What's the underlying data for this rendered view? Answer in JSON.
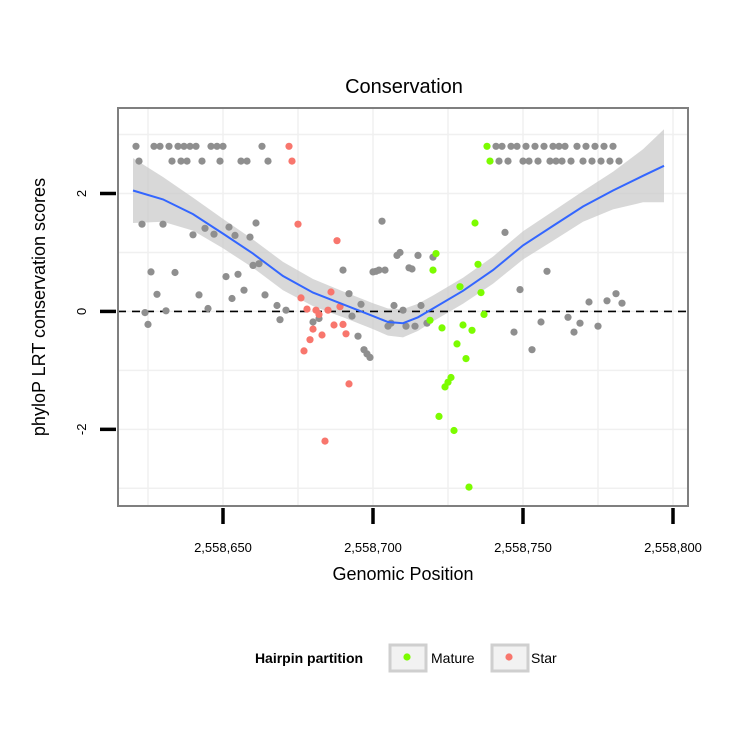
{
  "chart_data": {
    "type": "scatter",
    "title": "Conservation",
    "xlabel": "Genomic Position",
    "ylabel": "phyloP LRT conservation scores",
    "xlim": [
      2558615,
      2558805
    ],
    "ylim": [
      -3.3,
      3.45
    ],
    "x_ticks": [
      2558650,
      2558700,
      2558750,
      2558800
    ],
    "x_tick_labels": [
      "2,558,650",
      "2,558,700",
      "2,558,750",
      "2,558,800"
    ],
    "y_ticks": [
      -2,
      0,
      2
    ],
    "y_tick_labels": [
      "-2",
      "0",
      "2"
    ],
    "reference_line": {
      "y": 0,
      "style": "dashed"
    },
    "legend": {
      "title": "Hairpin partition",
      "position": "bottom",
      "entries": [
        {
          "label": "Mature",
          "color": "#7cfc00"
        },
        {
          "label": "Star",
          "color": "#f8766d"
        }
      ]
    },
    "colors": {
      "other": "#8f8f8f",
      "mature": "#7cfc00",
      "star": "#f8766d",
      "smooth": "#3366ff",
      "ribbon": "#c8c8c8"
    },
    "series": [
      {
        "name": "Other",
        "points": [
          [
            2558621,
            2.8
          ],
          [
            2558622,
            2.55
          ],
          [
            2558623,
            1.48
          ],
          [
            2558624,
            -0.02
          ],
          [
            2558625,
            -0.22
          ],
          [
            2558626,
            0.67
          ],
          [
            2558627,
            2.8
          ],
          [
            2558628,
            0.29
          ],
          [
            2558629,
            2.8
          ],
          [
            2558630,
            1.48
          ],
          [
            2558631,
            0.01
          ],
          [
            2558632,
            2.8
          ],
          [
            2558633,
            2.55
          ],
          [
            2558634,
            0.66
          ],
          [
            2558635,
            2.8
          ],
          [
            2558636,
            2.55
          ],
          [
            2558637,
            2.8
          ],
          [
            2558638,
            2.55
          ],
          [
            2558639,
            2.8
          ],
          [
            2558640,
            1.3
          ],
          [
            2558641,
            2.8
          ],
          [
            2558642,
            0.28
          ],
          [
            2558643,
            2.55
          ],
          [
            2558644,
            1.41
          ],
          [
            2558645,
            0.05
          ],
          [
            2558646,
            2.8
          ],
          [
            2558647,
            1.31
          ],
          [
            2558648,
            2.8
          ],
          [
            2558649,
            2.55
          ],
          [
            2558650,
            2.8
          ],
          [
            2558651,
            0.59
          ],
          [
            2558652,
            1.43
          ],
          [
            2558653,
            0.22
          ],
          [
            2558654,
            1.29
          ],
          [
            2558655,
            0.63
          ],
          [
            2558656,
            2.55
          ],
          [
            2558657,
            0.36
          ],
          [
            2558658,
            2.55
          ],
          [
            2558659,
            1.26
          ],
          [
            2558660,
            0.78
          ],
          [
            2558661,
            1.5
          ],
          [
            2558662,
            0.81
          ],
          [
            2558663,
            2.8
          ],
          [
            2558664,
            0.28
          ],
          [
            2558665,
            2.55
          ],
          [
            2558668,
            0.1
          ],
          [
            2558669,
            -0.14
          ],
          [
            2558671,
            0.02
          ],
          [
            2558680,
            -0.18
          ],
          [
            2558682,
            -0.12
          ],
          [
            2558690,
            0.7
          ],
          [
            2558692,
            0.3
          ],
          [
            2558693,
            -0.08
          ],
          [
            2558695,
            -0.42
          ],
          [
            2558696,
            0.12
          ],
          [
            2558697,
            -0.65
          ],
          [
            2558698,
            -0.72
          ],
          [
            2558699,
            -0.78
          ],
          [
            2558700,
            0.67
          ],
          [
            2558701,
            0.68
          ],
          [
            2558702,
            0.7
          ],
          [
            2558703,
            1.53
          ],
          [
            2558704,
            0.7
          ],
          [
            2558705,
            -0.25
          ],
          [
            2558706,
            -0.2
          ],
          [
            2558707,
            0.1
          ],
          [
            2558708,
            0.95
          ],
          [
            2558709,
            1.0
          ],
          [
            2558710,
            0.02
          ],
          [
            2558711,
            -0.25
          ],
          [
            2558712,
            0.74
          ],
          [
            2558713,
            0.72
          ],
          [
            2558714,
            -0.25
          ],
          [
            2558715,
            0.95
          ],
          [
            2558716,
            0.1
          ],
          [
            2558718,
            -0.2
          ],
          [
            2558720,
            0.92
          ],
          [
            2558741,
            2.8
          ],
          [
            2558742,
            2.55
          ],
          [
            2558743,
            2.8
          ],
          [
            2558744,
            1.34
          ],
          [
            2558745,
            2.55
          ],
          [
            2558746,
            2.8
          ],
          [
            2558747,
            -0.35
          ],
          [
            2558748,
            2.8
          ],
          [
            2558749,
            0.37
          ],
          [
            2558750,
            2.55
          ],
          [
            2558751,
            2.8
          ],
          [
            2558752,
            2.55
          ],
          [
            2558753,
            -0.65
          ],
          [
            2558754,
            2.8
          ],
          [
            2558755,
            2.55
          ],
          [
            2558756,
            -0.18
          ],
          [
            2558757,
            2.8
          ],
          [
            2558758,
            0.68
          ],
          [
            2558759,
            2.55
          ],
          [
            2558760,
            2.8
          ],
          [
            2558761,
            2.55
          ],
          [
            2558762,
            2.8
          ],
          [
            2558763,
            2.55
          ],
          [
            2558764,
            2.8
          ],
          [
            2558765,
            -0.1
          ],
          [
            2558766,
            2.55
          ],
          [
            2558767,
            -0.35
          ],
          [
            2558768,
            2.8
          ],
          [
            2558769,
            -0.2
          ],
          [
            2558770,
            2.55
          ],
          [
            2558771,
            2.8
          ],
          [
            2558772,
            0.16
          ],
          [
            2558773,
            2.55
          ],
          [
            2558774,
            2.8
          ],
          [
            2558775,
            -0.25
          ],
          [
            2558776,
            2.55
          ],
          [
            2558777,
            2.8
          ],
          [
            2558778,
            0.18
          ],
          [
            2558779,
            2.55
          ],
          [
            2558780,
            2.8
          ],
          [
            2558781,
            0.3
          ],
          [
            2558782,
            2.55
          ],
          [
            2558783,
            0.14
          ]
        ]
      },
      {
        "name": "Mature",
        "points": [
          [
            2558719,
            -0.15
          ],
          [
            2558720,
            0.7
          ],
          [
            2558721,
            0.98
          ],
          [
            2558722,
            -1.78
          ],
          [
            2558723,
            -0.28
          ],
          [
            2558724,
            -1.28
          ],
          [
            2558725,
            -1.2
          ],
          [
            2558726,
            -1.12
          ],
          [
            2558727,
            -2.02
          ],
          [
            2558728,
            -0.55
          ],
          [
            2558729,
            0.42
          ],
          [
            2558730,
            -0.23
          ],
          [
            2558731,
            -0.8
          ],
          [
            2558732,
            -2.98
          ],
          [
            2558733,
            -0.32
          ],
          [
            2558734,
            1.5
          ],
          [
            2558735,
            0.8
          ],
          [
            2558736,
            0.32
          ],
          [
            2558737,
            -0.05
          ],
          [
            2558738,
            2.8
          ],
          [
            2558739,
            2.55
          ]
        ]
      },
      {
        "name": "Star",
        "points": [
          [
            2558672,
            2.8
          ],
          [
            2558673,
            2.55
          ],
          [
            2558675,
            1.48
          ],
          [
            2558676,
            0.23
          ],
          [
            2558677,
            -0.67
          ],
          [
            2558678,
            0.04
          ],
          [
            2558679,
            -0.48
          ],
          [
            2558680,
            -0.3
          ],
          [
            2558681,
            0.02
          ],
          [
            2558682,
            -0.05
          ],
          [
            2558683,
            -0.4
          ],
          [
            2558684,
            -2.2
          ],
          [
            2558685,
            0.02
          ],
          [
            2558686,
            0.33
          ],
          [
            2558687,
            -0.23
          ],
          [
            2558688,
            1.2
          ],
          [
            2558689,
            0.08
          ],
          [
            2558690,
            -0.22
          ],
          [
            2558691,
            -0.38
          ],
          [
            2558692,
            -1.23
          ]
        ]
      }
    ],
    "smooth": {
      "x": [
        2558620,
        2558630,
        2558640,
        2558650,
        2558660,
        2558670,
        2558680,
        2558690,
        2558700,
        2558705,
        2558710,
        2558715,
        2558720,
        2558730,
        2558740,
        2558750,
        2558760,
        2558770,
        2558780,
        2558790,
        2558797
      ],
      "y": [
        2.05,
        1.9,
        1.65,
        1.32,
        0.98,
        0.6,
        0.32,
        0.12,
        -0.08,
        -0.18,
        -0.2,
        -0.1,
        0.05,
        0.35,
        0.7,
        1.12,
        1.45,
        1.78,
        2.05,
        2.3,
        2.47
      ],
      "ci_half": [
        0.55,
        0.38,
        0.28,
        0.25,
        0.24,
        0.24,
        0.23,
        0.22,
        0.22,
        0.23,
        0.24,
        0.23,
        0.22,
        0.22,
        0.23,
        0.24,
        0.25,
        0.26,
        0.32,
        0.45,
        0.62
      ]
    }
  }
}
